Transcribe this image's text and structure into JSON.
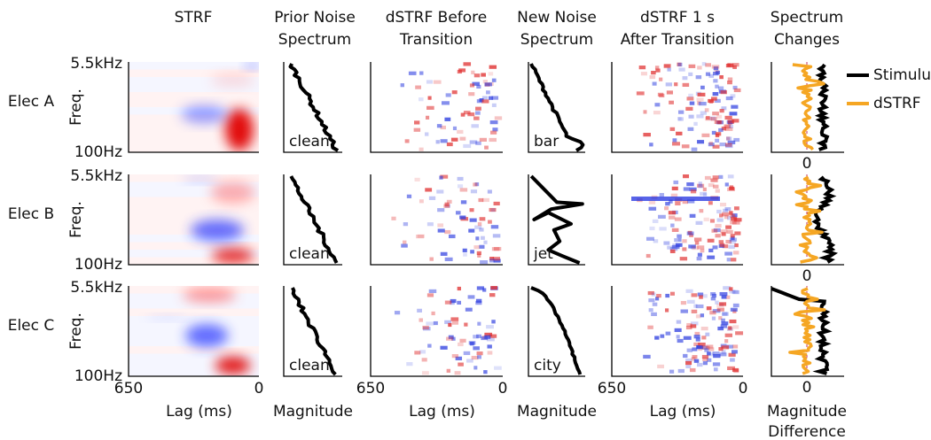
{
  "columns": [
    [
      "STRF"
    ],
    [
      "Prior Noise",
      "Spectrum"
    ],
    [
      "dSTRF Before",
      "Transition"
    ],
    [
      "New Noise",
      "Spectrum"
    ],
    [
      "dSTRF 1 s",
      "After Transition"
    ],
    [
      "Spectrum",
      "Changes"
    ]
  ],
  "rows": [
    {
      "label": "Elec A",
      "prior_noise": "clean",
      "new_noise": "bar"
    },
    {
      "label": "Elec B",
      "prior_noise": "clean",
      "new_noise": "jet"
    },
    {
      "label": "Elec C",
      "prior_noise": "clean",
      "new_noise": "city"
    }
  ],
  "freq_axis": {
    "label": "Freq.",
    "top": "5.5kHz",
    "bottom": "100Hz"
  },
  "lag_axis": {
    "label": "Lag (ms)",
    "start": "650",
    "end": "0"
  },
  "magnitude_label": "Magnitude",
  "difference_axis": {
    "zero": "0",
    "label": [
      "Magnitude",
      "Difference"
    ]
  },
  "legend": [
    "Stimulus",
    "dSTRF"
  ]
}
